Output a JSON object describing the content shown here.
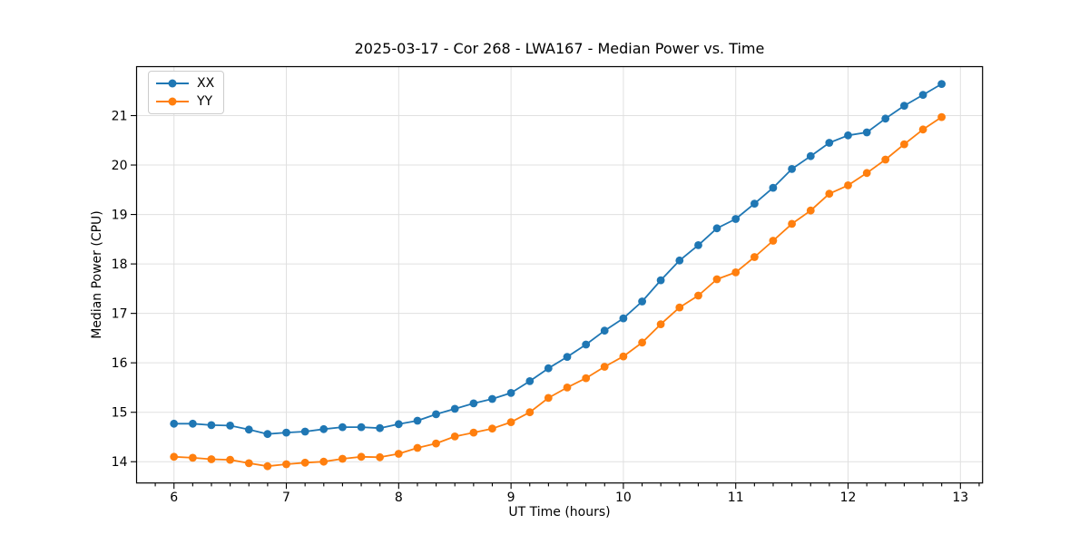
{
  "figure": {
    "title": "2025-03-17 - Cor 268 - LWA167 - Median Power vs. Time"
  },
  "chart_data": {
    "type": "line",
    "title": "2025-03-17 - Cor 268 - LWA167 - Median Power vs. Time",
    "xlabel": "UT Time (hours)",
    "ylabel": "Median Power (CPU)",
    "x": [
      6.0,
      6.167,
      6.333,
      6.5,
      6.667,
      6.833,
      7.0,
      7.167,
      7.333,
      7.5,
      7.667,
      7.833,
      8.0,
      8.167,
      8.333,
      8.5,
      8.667,
      8.833,
      9.0,
      9.167,
      9.333,
      9.5,
      9.667,
      9.833,
      10.0,
      10.167,
      10.333,
      10.5,
      10.667,
      10.833,
      11.0,
      11.167,
      11.333,
      11.5,
      11.667,
      11.833,
      12.0,
      12.167,
      12.333,
      12.5,
      12.667,
      12.833
    ],
    "series": [
      {
        "name": "XX",
        "color": "#1f77b4",
        "values": [
          14.77,
          14.77,
          14.74,
          14.73,
          14.65,
          14.56,
          14.59,
          14.61,
          14.66,
          14.7,
          14.7,
          14.68,
          14.76,
          14.83,
          14.96,
          15.07,
          15.18,
          15.27,
          15.39,
          15.63,
          15.89,
          16.12,
          16.37,
          16.65,
          16.9,
          17.24,
          17.67,
          18.07,
          18.38,
          18.72,
          18.91,
          19.22,
          19.54,
          19.92,
          20.18,
          20.45,
          20.6,
          20.66,
          20.94,
          21.2,
          21.42,
          21.64
        ]
      },
      {
        "name": "YY",
        "color": "#ff7f0e",
        "values": [
          14.1,
          14.08,
          14.05,
          14.04,
          13.97,
          13.91,
          13.95,
          13.98,
          14.0,
          14.06,
          14.1,
          14.09,
          14.16,
          14.28,
          14.37,
          14.51,
          14.59,
          14.67,
          14.8,
          15.0,
          15.29,
          15.5,
          15.69,
          15.92,
          16.13,
          16.41,
          16.78,
          17.12,
          17.36,
          17.69,
          17.83,
          18.14,
          18.47,
          18.81,
          19.08,
          19.42,
          19.59,
          19.84,
          20.11,
          20.42,
          20.72,
          20.97
        ]
      }
    ],
    "xlim": [
      5.667,
      13.197
    ],
    "ylim": [
      13.57,
      21.99
    ],
    "xticks": [
      6,
      7,
      8,
      9,
      10,
      11,
      12,
      13
    ],
    "yticks": [
      14,
      15,
      16,
      17,
      18,
      19,
      20,
      21
    ],
    "x_minor_step": 0.16667,
    "grid": "major-both",
    "grid_color": "#e0e0e0",
    "marker": "circle",
    "legend": {
      "position": "upper-left",
      "entries": [
        "XX",
        "YY"
      ]
    }
  }
}
